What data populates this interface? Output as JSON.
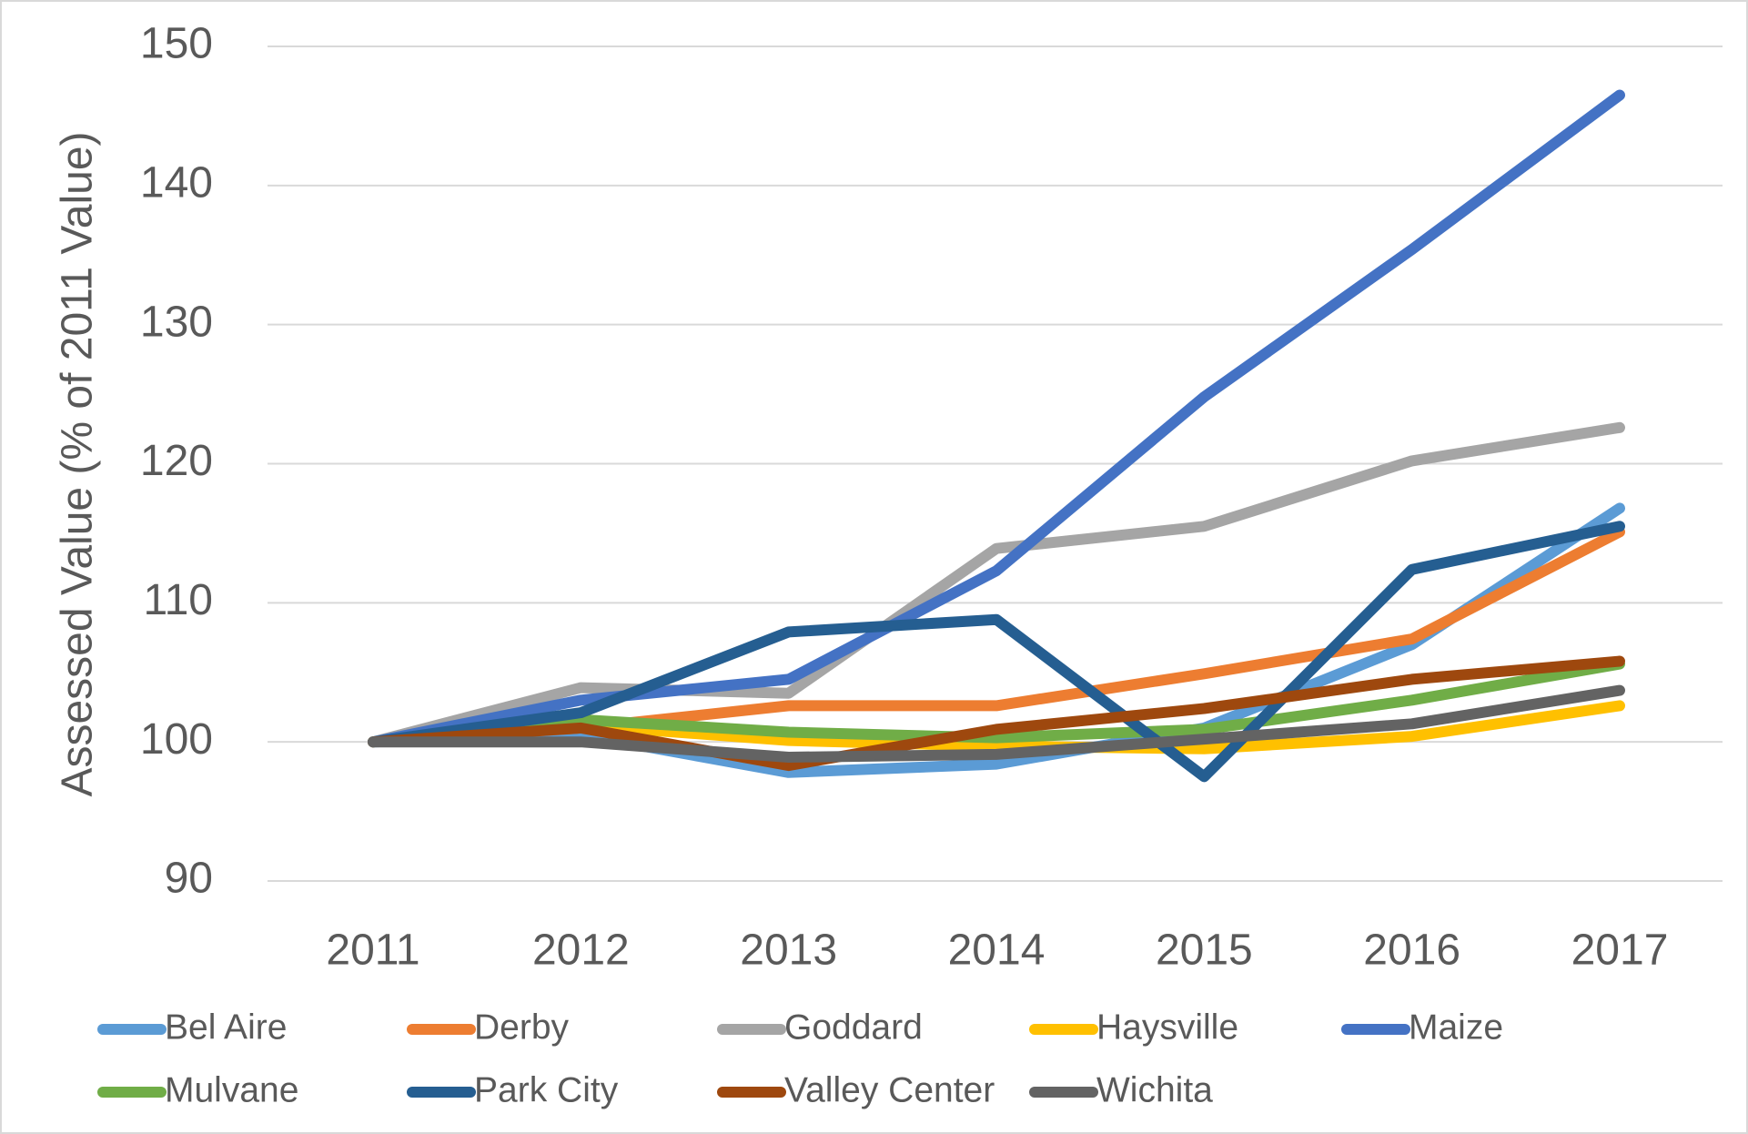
{
  "chart_data": {
    "type": "line",
    "y_label": "Assessed Value (% of 2011 Value)",
    "categories": [
      "2011",
      "2012",
      "2013",
      "2014",
      "2015",
      "2016",
      "2017"
    ],
    "ylim": [
      90,
      150
    ],
    "yticks": [
      90,
      100,
      110,
      120,
      130,
      140,
      150
    ],
    "grid": true,
    "series": [
      {
        "name": "Bel Aire",
        "color": "#5b9bd5",
        "values": [
          100,
          100.5,
          97.8,
          98.4,
          101,
          107,
          116.8
        ]
      },
      {
        "name": "Derby",
        "color": "#ed7d31",
        "values": [
          100,
          101,
          102.6,
          102.6,
          104.9,
          107.4,
          115.1
        ]
      },
      {
        "name": "Goddard",
        "color": "#a5a5a5",
        "values": [
          100,
          103.9,
          103.5,
          113.9,
          115.5,
          120.2,
          122.6
        ]
      },
      {
        "name": "Haysville",
        "color": "#ffc000",
        "values": [
          100,
          101.2,
          100.1,
          99.7,
          99.5,
          100.4,
          102.6
        ]
      },
      {
        "name": "Maize",
        "color": "#4472c4",
        "values": [
          100,
          103,
          104.5,
          112.3,
          124.8,
          135.4,
          146.5
        ]
      },
      {
        "name": "Mulvane",
        "color": "#70ad47",
        "values": [
          100,
          101.6,
          100.7,
          100.3,
          100.9,
          103,
          105.6
        ]
      },
      {
        "name": "Park City",
        "color": "#255e91",
        "values": [
          100,
          102.1,
          107.9,
          108.8,
          97.5,
          112.4,
          115.5
        ]
      },
      {
        "name": "Valley Center",
        "color": "#9e480e",
        "values": [
          100,
          101,
          98.3,
          100.9,
          102.4,
          104.5,
          105.8
        ]
      },
      {
        "name": "Wichita",
        "color": "#636363",
        "values": [
          100,
          100,
          98.9,
          99.1,
          100.2,
          101.3,
          103.7
        ]
      }
    ],
    "legend": "bottom"
  }
}
